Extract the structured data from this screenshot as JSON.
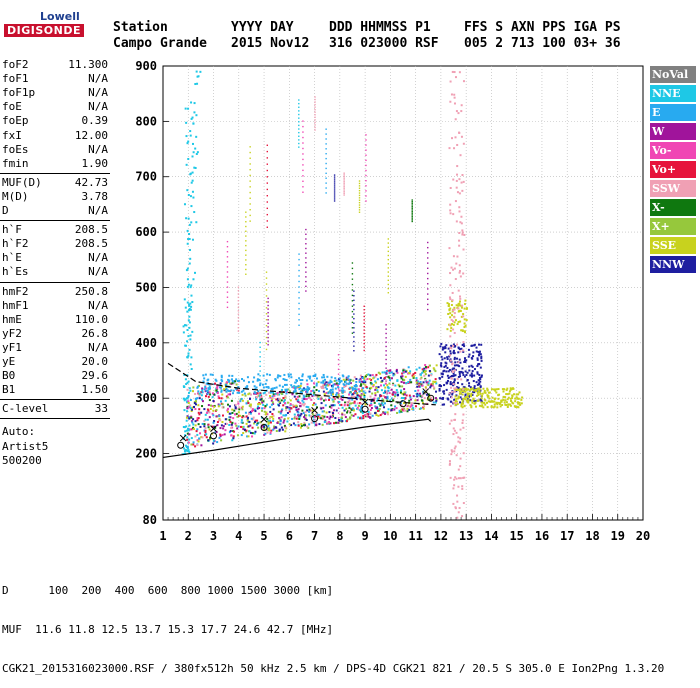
{
  "logo": {
    "top": "Lowell",
    "bottom": "DIGISONDE"
  },
  "header": {
    "row1": [
      "Station",
      "YYYY DAY",
      "DDD HHMMSS P1",
      "FFS S AXN PPS IGA PS"
    ],
    "row2": [
      "Campo Grande",
      "2015 Nov12",
      "316 023000 RSF",
      "005 2 713 100 03+ 36"
    ]
  },
  "params": {
    "group1": [
      {
        "label": "foF2",
        "value": "11.300"
      },
      {
        "label": "foF1",
        "value": "N/A"
      },
      {
        "label": "foF1p",
        "value": "N/A"
      },
      {
        "label": "foE",
        "value": "N/A"
      },
      {
        "label": "foEp",
        "value": "0.39"
      },
      {
        "label": "fxI",
        "value": "12.00"
      },
      {
        "label": "foEs",
        "value": "N/A"
      },
      {
        "label": "fmin",
        "value": "1.90"
      }
    ],
    "group2": [
      {
        "label": "MUF(D)",
        "value": "42.73"
      },
      {
        "label": "M(D)",
        "value": "3.78"
      },
      {
        "label": "D",
        "value": "N/A"
      }
    ],
    "group3": [
      {
        "label": "h`F",
        "value": "208.5"
      },
      {
        "label": "h`F2",
        "value": "208.5"
      },
      {
        "label": "h`E",
        "value": "N/A"
      },
      {
        "label": "h`Es",
        "value": "N/A"
      }
    ],
    "group4": [
      {
        "label": "hmF2",
        "value": "250.8"
      },
      {
        "label": "hmF1",
        "value": "N/A"
      },
      {
        "label": "hmE",
        "value": "110.0"
      },
      {
        "label": "yF2",
        "value": "26.8"
      },
      {
        "label": "yF1",
        "value": "N/A"
      },
      {
        "label": "yE",
        "value": "20.0"
      },
      {
        "label": "B0",
        "value": "29.6"
      },
      {
        "label": "B1",
        "value": "1.50"
      }
    ],
    "group5": [
      {
        "label": "C-level",
        "value": "33"
      }
    ],
    "auto": [
      "Auto:",
      "Artist5",
      "500200"
    ]
  },
  "legend": [
    {
      "label": "NoVal",
      "bg": "#808080",
      "fg": "#ffffff"
    },
    {
      "label": "NNE",
      "bg": "#1ec8e6",
      "fg": "#ffffff"
    },
    {
      "label": "E",
      "bg": "#28aaf0",
      "fg": "#ffffff"
    },
    {
      "label": "W",
      "bg": "#a0149b",
      "fg": "#ffffff"
    },
    {
      "label": "Vo-",
      "bg": "#f046b4",
      "fg": "#ffffff"
    },
    {
      "label": "Vo+",
      "bg": "#e6143c",
      "fg": "#ffffff"
    },
    {
      "label": "SSW",
      "bg": "#f0a0b4",
      "fg": "#ffffff"
    },
    {
      "label": "X-",
      "bg": "#0f780f",
      "fg": "#ffffff"
    },
    {
      "label": "X+",
      "bg": "#96c83c",
      "fg": "#ffffff"
    },
    {
      "label": "SSE",
      "bg": "#c8d21e",
      "fg": "#ffffff"
    },
    {
      "label": "NNW",
      "bg": "#1e1ea0",
      "fg": "#ffffff"
    }
  ],
  "chart_data": {
    "type": "scatter",
    "title": "",
    "xlabel": "",
    "ylabel": "",
    "xlim": [
      1,
      20
    ],
    "ylim": [
      80,
      900
    ],
    "x_ticks": [
      1,
      2,
      3,
      4,
      5,
      6,
      7,
      8,
      9,
      10,
      11,
      12,
      13,
      14,
      15,
      16,
      17,
      18,
      19,
      20
    ],
    "y_ticks": [
      200,
      300,
      400,
      500,
      600,
      700,
      800,
      900
    ],
    "y_tick_bottom": "80",
    "grid": true,
    "traces": [
      {
        "name": "trace-o",
        "x": [
          1.7,
          3,
          5,
          7,
          9,
          10.5,
          11.6
        ],
        "y": [
          215,
          232,
          247,
          263,
          280,
          290,
          300
        ]
      },
      {
        "name": "trace-x",
        "x": [
          1.8,
          3,
          5,
          7,
          9,
          11.4
        ],
        "y": [
          228,
          245,
          262,
          278,
          293,
          312
        ]
      }
    ],
    "lines": [
      {
        "name": "profile-lower",
        "x": [
          1.0,
          3,
          6,
          9,
          11.5,
          11.6
        ],
        "y": [
          193,
          206,
          228,
          248,
          262,
          258
        ]
      },
      {
        "name": "profile-upper",
        "x": [
          1.2,
          2.3,
          4.0,
          6.0,
          8.0,
          10.0,
          11.8
        ],
        "y": [
          363,
          330,
          318,
          310,
          302,
          294,
          288
        ]
      }
    ],
    "clusters": [
      {
        "name": "nne-band",
        "x": [
          1.8,
          2.1
        ],
        "y": [
          200,
          900
        ],
        "series": "NNE",
        "density": 160
      },
      {
        "name": "main-low-band",
        "x": [
          1.9,
          11.8
        ],
        "y": [
          210,
          330
        ],
        "series": "mix",
        "density": 1400
      },
      {
        "name": "e-upper-band",
        "x": [
          2.5,
          9.0
        ],
        "y": [
          310,
          345
        ],
        "series": "E",
        "density": 220
      },
      {
        "name": "nnw-cluster",
        "x": [
          11.9,
          13.6
        ],
        "y": [
          290,
          400
        ],
        "series": "NNW",
        "density": 260
      },
      {
        "name": "sse-tail",
        "x": [
          12.5,
          15.2
        ],
        "y": [
          285,
          320
        ],
        "series": "SSE",
        "density": 220
      },
      {
        "name": "sse-high",
        "x": [
          12.2,
          13.0
        ],
        "y": [
          420,
          480
        ],
        "series": "SSE",
        "density": 60
      },
      {
        "name": "vertical-1213",
        "x": [
          12.3,
          12.9
        ],
        "y": [
          80,
          900
        ],
        "series": "SSW",
        "density": 180
      }
    ]
  },
  "footer": {
    "line1": "D      100  200  400  600  800 1000 1500 3000 [km]",
    "line2": "MUF  11.6 11.8 12.5 13.7 15.3 17.7 24.6 42.7 [MHz]",
    "line3": "CGK21_2015316023000.RSF / 380fx512h 50 kHz 2.5 km / DPS-4D CGK21 821 / 20.5 S 305.0 E Ion2Png 1.3.20"
  }
}
